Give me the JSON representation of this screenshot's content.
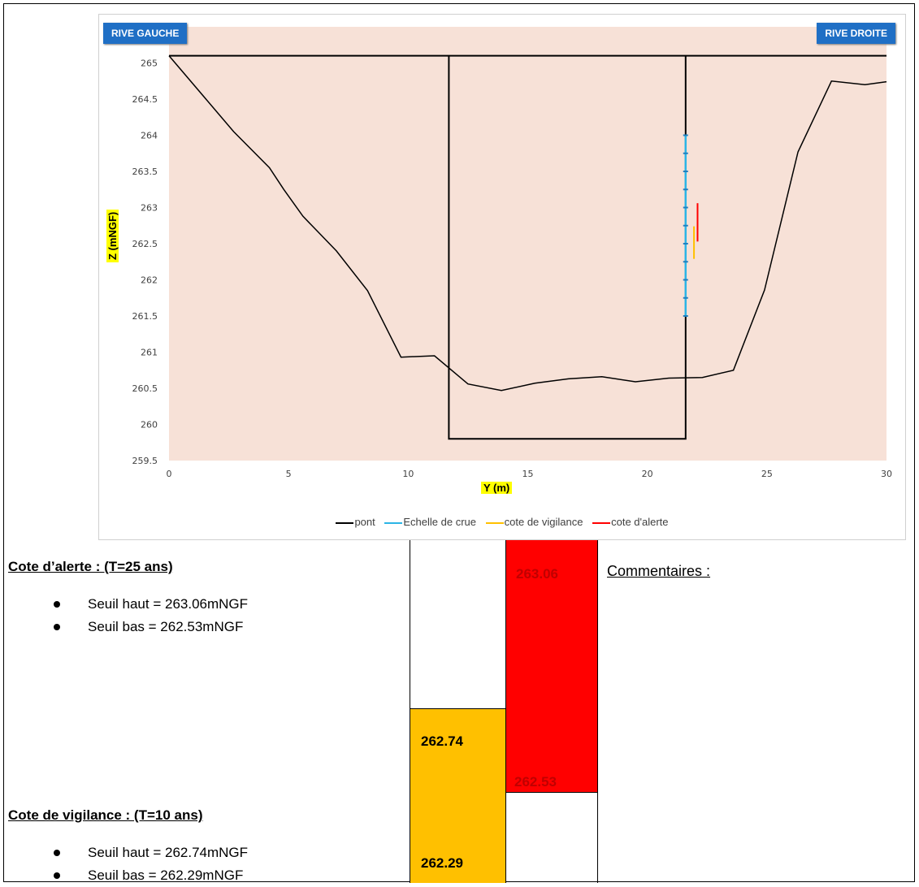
{
  "chart_data": {
    "type": "line",
    "xlabel": "Y (m)",
    "ylabel": "Z (mNGF)",
    "xlim": [
      0,
      30
    ],
    "ylim": [
      259.5,
      265.5
    ],
    "x_ticks": [
      0,
      5,
      10,
      15,
      20,
      25,
      30
    ],
    "y_ticks": [
      259.5,
      260,
      260.5,
      261,
      261.5,
      262,
      262.5,
      263,
      263.5,
      264,
      264.5,
      265
    ],
    "bank_labels": {
      "left": "RIVE GAUCHE",
      "right": "RIVE DROITE"
    },
    "background_color": "#f7e1d7",
    "grid": false,
    "legend_position": "bottom",
    "series": [
      {
        "name": "pont",
        "color": "#000000",
        "points": [
          [
            0,
            265.1
          ],
          [
            30,
            265.1
          ]
        ],
        "extra_polylines": [
          [
            [
              11.7,
              265.1
            ],
            [
              11.7,
              259.8
            ],
            [
              21.6,
              259.8
            ],
            [
              21.6,
              265.1
            ]
          ]
        ]
      },
      {
        "name": "",
        "color": "#000000",
        "points": [
          [
            0,
            265.1
          ],
          [
            2.7,
            264.05
          ],
          [
            4.2,
            263.55
          ],
          [
            4.8,
            263.25
          ],
          [
            5.6,
            262.88
          ],
          [
            7.0,
            262.4
          ],
          [
            8.3,
            261.85
          ],
          [
            9.7,
            260.93
          ],
          [
            11.1,
            260.95
          ],
          [
            12.5,
            260.56
          ],
          [
            13.9,
            260.47
          ],
          [
            15.3,
            260.57
          ],
          [
            16.7,
            260.63
          ],
          [
            18.1,
            260.66
          ],
          [
            19.5,
            260.59
          ],
          [
            20.9,
            260.64
          ],
          [
            22.3,
            260.65
          ],
          [
            23.6,
            260.75
          ],
          [
            24.9,
            261.86
          ],
          [
            26.3,
            263.77
          ],
          [
            27.7,
            264.75
          ],
          [
            29.1,
            264.7
          ],
          [
            30.0,
            264.74
          ]
        ]
      },
      {
        "name": "Echelle de crue",
        "color": "#2bb5e6",
        "x": 21.6,
        "range": [
          261.5,
          264.0
        ],
        "ticks": [
          261.5,
          261.75,
          262.0,
          262.25,
          262.5,
          262.75,
          263.0,
          263.25,
          263.5,
          263.75,
          264.0
        ]
      },
      {
        "name": "cote de vigilance",
        "color": "#ffc000",
        "x": 21.95,
        "range": [
          262.29,
          262.74
        ]
      },
      {
        "name": "cote d'alerte",
        "color": "#ff0000",
        "x": 22.1,
        "range": [
          262.53,
          263.06
        ]
      }
    ]
  },
  "alerte": {
    "title": "Cote d’alerte : (T=25 ans)",
    "items": [
      "Seuil haut = 263.06mNGF",
      "Seuil bas = 262.53mNGF"
    ]
  },
  "vigilance": {
    "title": "Cote de vigilance : (T=10 ans)",
    "items": [
      "Seuil haut = 262.74mNGF",
      "Seuil bas = 262.29mNGF"
    ]
  },
  "level_boxes": {
    "vigilance": {
      "high": "262.74",
      "low": "262.29",
      "color": "#ffc000"
    },
    "alerte": {
      "high": "263.06",
      "low": "262.53",
      "color": "#ff0000",
      "text_color": "#c00000"
    }
  },
  "comments_label": "Commentaires :"
}
